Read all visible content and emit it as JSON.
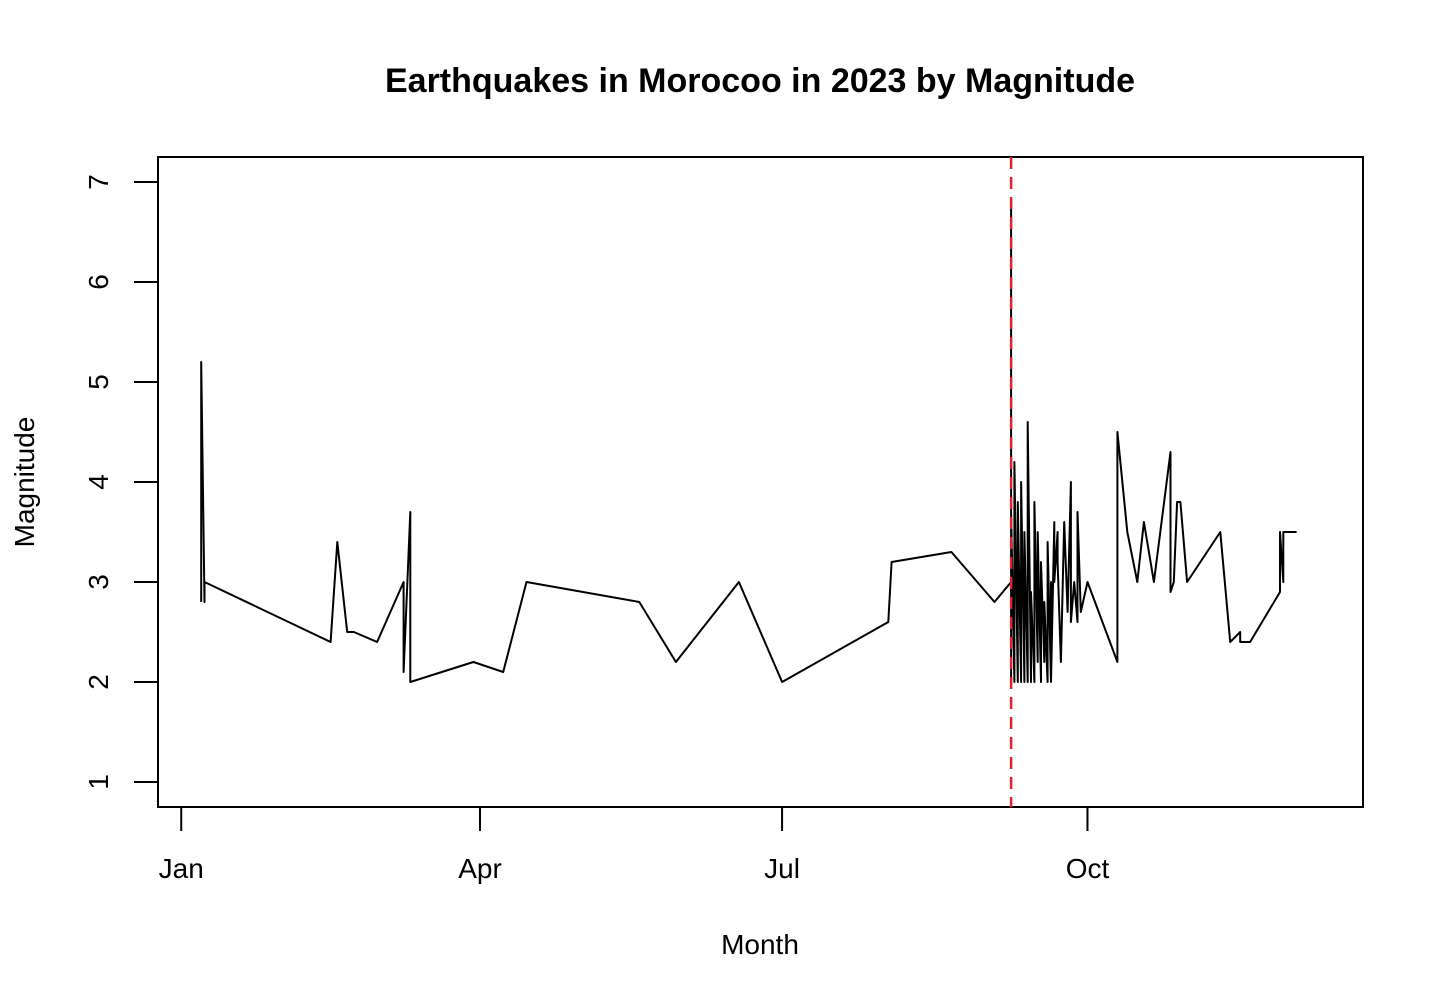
{
  "chart_data": {
    "type": "line",
    "title": "Earthquakes in Morocoo in 2023 by Magnitude",
    "xlabel": "Month",
    "ylabel": "Magnitude",
    "x_scale": "date",
    "xlim": [
      "2022-12-25",
      "2023-12-23"
    ],
    "ylim": [
      0.75,
      7.25
    ],
    "x_ticks": [
      {
        "date": "2023-01-01",
        "label": "Jan"
      },
      {
        "date": "2023-04-01",
        "label": "Apr"
      },
      {
        "date": "2023-07-01",
        "label": "Jul"
      },
      {
        "date": "2023-10-01",
        "label": "Oct"
      }
    ],
    "y_ticks": [
      1,
      2,
      3,
      4,
      5,
      6,
      7
    ],
    "grid": false,
    "line_color": "#000000",
    "reference_line": {
      "date": "2023-09-08",
      "color": "#e8202a",
      "style": "dashed"
    },
    "series": [
      {
        "x": [
          "2023-01-07",
          "2023-01-07",
          "2023-01-08",
          "2023-01-08",
          "2023-01-08",
          "2023-02-15",
          "2023-02-17",
          "2023-02-20",
          "2023-02-22",
          "2023-03-01",
          "2023-03-09",
          "2023-03-09",
          "2023-03-11",
          "2023-03-11",
          "2023-03-30",
          "2023-04-08",
          "2023-04-15",
          "2023-05-19",
          "2023-05-30",
          "2023-06-18",
          "2023-07-01",
          "2023-08-02",
          "2023-08-03",
          "2023-08-21",
          "2023-09-03",
          "2023-09-08",
          "2023-09-08",
          "2023-09-08",
          "2023-09-08",
          "2023-09-09",
          "2023-09-09",
          "2023-09-09",
          "2023-09-09",
          "2023-09-10",
          "2023-09-10",
          "2023-09-11",
          "2023-09-11",
          "2023-09-12",
          "2023-09-12",
          "2023-09-13",
          "2023-09-13",
          "2023-09-14",
          "2023-09-14",
          "2023-09-15",
          "2023-09-15",
          "2023-09-16",
          "2023-09-16",
          "2023-09-17",
          "2023-09-17",
          "2023-09-18",
          "2023-09-18",
          "2023-09-19",
          "2023-09-19",
          "2023-09-20",
          "2023-09-20",
          "2023-09-20",
          "2023-09-21",
          "2023-09-21",
          "2023-09-22",
          "2023-09-22",
          "2023-09-23",
          "2023-09-24",
          "2023-09-25",
          "2023-09-26",
          "2023-09-26",
          "2023-09-27",
          "2023-09-27",
          "2023-09-28",
          "2023-09-28",
          "2023-09-29",
          "2023-10-01",
          "2023-10-10",
          "2023-10-10",
          "2023-10-13",
          "2023-10-16",
          "2023-10-18",
          "2023-10-21",
          "2023-10-26",
          "2023-10-26",
          "2023-10-27",
          "2023-10-28",
          "2023-10-29",
          "2023-10-31",
          "2023-11-10",
          "2023-11-13",
          "2023-11-16",
          "2023-11-16",
          "2023-11-19",
          "2023-11-28",
          "2023-11-28",
          "2023-11-29",
          "2023-11-29",
          "2023-12-03"
        ],
        "y": [
          2.8,
          5.2,
          2.8,
          3.0,
          3.0,
          2.4,
          3.4,
          2.5,
          2.5,
          2.4,
          3.0,
          2.1,
          3.7,
          2.0,
          2.2,
          2.1,
          3.0,
          2.8,
          2.2,
          3.0,
          2.0,
          2.6,
          3.2,
          3.3,
          2.8,
          3.0,
          6.8,
          2.0,
          3.7,
          2.0,
          3.6,
          2.0,
          4.2,
          2.0,
          3.8,
          2.0,
          4.0,
          2.0,
          3.5,
          2.0,
          4.6,
          2.0,
          2.9,
          2.0,
          3.8,
          2.2,
          3.5,
          2.0,
          3.2,
          2.2,
          2.8,
          2.0,
          3.4,
          2.0,
          3.0,
          2.0,
          3.6,
          3.0,
          3.5,
          3.2,
          2.2,
          3.6,
          2.7,
          4.0,
          2.6,
          3.0,
          3.0,
          2.6,
          3.7,
          2.7,
          3.0,
          2.2,
          4.5,
          3.5,
          3.0,
          3.6,
          3.0,
          4.3,
          2.9,
          3.0,
          3.8,
          3.8,
          3.0,
          3.5,
          2.4,
          2.5,
          2.4,
          2.4,
          2.9,
          3.5,
          3.0,
          3.5,
          3.5
        ]
      }
    ]
  }
}
